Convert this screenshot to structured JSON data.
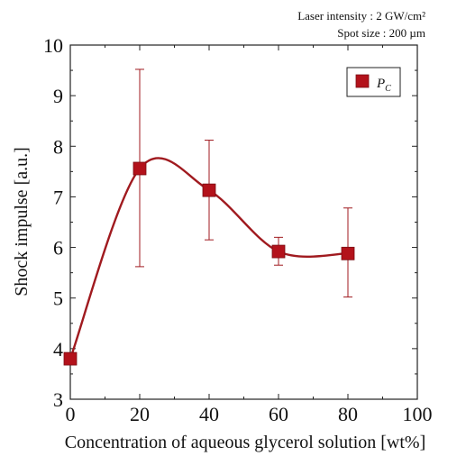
{
  "chart_data": {
    "type": "scatter",
    "title": "",
    "annotations": [
      "Laser intensity : 2 GW/cm²",
      "Spot size : 200 µm"
    ],
    "xlabel": "Concentration of aqueous glycerol solution [wt%]",
    "ylabel": "Shock impulse [a.u.]",
    "xlim": [
      0,
      100
    ],
    "ylim": [
      3,
      10
    ],
    "x_ticks": [
      0,
      20,
      40,
      60,
      80,
      100
    ],
    "y_ticks": [
      3,
      4,
      5,
      6,
      7,
      8,
      9,
      10
    ],
    "grid": false,
    "legend_position": "top-right",
    "series": [
      {
        "name": "PC",
        "legend_main": "P",
        "legend_sub": "C",
        "color": "#b3121b",
        "curve_color": "#a01a1f",
        "marker": "square",
        "x": [
          0,
          20,
          40,
          60,
          80
        ],
        "y": [
          3.8,
          7.56,
          7.13,
          5.92,
          5.88
        ],
        "y_err_low": [
          3.8,
          5.62,
          6.15,
          5.65,
          5.02
        ],
        "y_err_high": [
          3.8,
          9.52,
          8.12,
          6.2,
          6.78
        ]
      }
    ]
  }
}
